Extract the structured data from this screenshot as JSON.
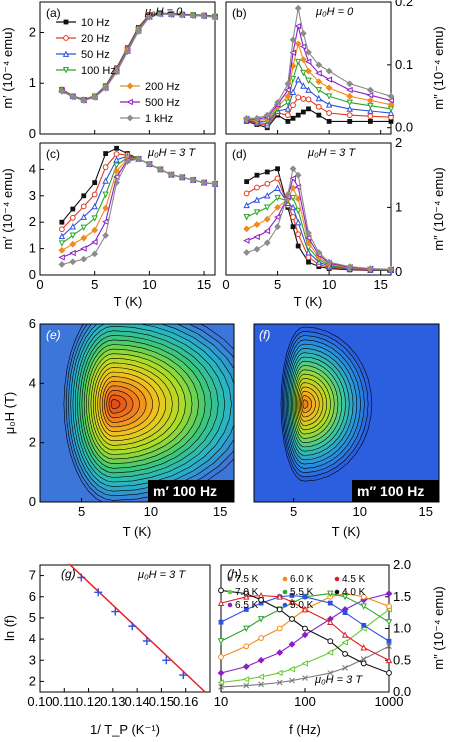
{
  "chart_data": [
    {
      "id": "a",
      "type": "line",
      "panel_label": "(a)",
      "condition": "μ₀H = 0",
      "ylabel": "m′ (10⁻⁴ emu)",
      "xlabel": "",
      "xlim": [
        0,
        16
      ],
      "ylim": [
        0,
        2.6
      ],
      "xticks": [
        0,
        5,
        10,
        15
      ],
      "yticks": [
        0,
        1,
        2
      ],
      "legend": [
        "10 Hz",
        "20 Hz",
        "50 Hz",
        "100 Hz",
        "200 Hz",
        "500 Hz",
        "1 kHz"
      ],
      "series": [
        {
          "name": "10 Hz",
          "x": [
            2,
            3,
            4,
            5,
            6,
            7,
            8,
            9,
            10,
            11,
            12,
            13,
            14,
            15,
            16
          ],
          "y": [
            0.88,
            0.75,
            0.68,
            0.75,
            0.95,
            1.3,
            1.7,
            2.1,
            2.35,
            2.38,
            2.37,
            2.36,
            2.35,
            2.34,
            2.32
          ]
        },
        {
          "name": "1 kHz",
          "x": [
            2,
            3,
            4,
            5,
            6,
            7,
            8,
            9,
            10,
            11,
            12,
            13,
            14,
            15,
            16
          ],
          "y": [
            0.84,
            0.73,
            0.66,
            0.72,
            0.9,
            1.22,
            1.62,
            2.02,
            2.3,
            2.36,
            2.35,
            2.34,
            2.33,
            2.32,
            2.3
          ]
        }
      ]
    },
    {
      "id": "b",
      "type": "line",
      "panel_label": "(b)",
      "condition": "μ₀H = 0",
      "ylabel": "m″ (10⁻⁴ emu)",
      "xlabel": "",
      "xlim": [
        0,
        16
      ],
      "ylim": [
        -0.01,
        0.2
      ],
      "xticks": [
        0,
        5,
        10,
        15
      ],
      "yticks": [
        0.0,
        0.1,
        0.2
      ],
      "series": [
        {
          "name": "10 Hz",
          "x": [
            2,
            3,
            4,
            5,
            6,
            7,
            8,
            9,
            10,
            12,
            14,
            16
          ],
          "y": [
            0.01,
            0.005,
            0.0,
            0.02,
            0.01,
            0.02,
            0.03,
            0.02,
            0.01,
            0.01,
            0.01,
            0.01
          ]
        },
        {
          "name": "1 kHz",
          "x": [
            2,
            3,
            4,
            5,
            6,
            6.5,
            7,
            7.5,
            8,
            9,
            10,
            12,
            14,
            16
          ],
          "y": [
            0.015,
            0.015,
            0.02,
            0.04,
            0.07,
            0.14,
            0.19,
            0.15,
            0.12,
            0.1,
            0.09,
            0.07,
            0.06,
            0.05
          ]
        }
      ]
    },
    {
      "id": "c",
      "type": "line",
      "panel_label": "(c)",
      "condition": "μ₀H = 3 T",
      "ylabel": "m′ (10⁻⁴ emu)",
      "xlabel": "T (K)",
      "xlim": [
        0,
        16
      ],
      "ylim": [
        0,
        5
      ],
      "xticks": [
        0,
        5,
        10,
        15
      ],
      "yticks": [
        0,
        1,
        2,
        3,
        4
      ],
      "series": [
        {
          "name": "10 Hz",
          "x": [
            2,
            3,
            4,
            5,
            6,
            7,
            8,
            9,
            10,
            11,
            12,
            13,
            14,
            15,
            16
          ],
          "y": [
            2.0,
            2.5,
            3.0,
            3.5,
            4.6,
            4.8,
            4.6,
            4.4,
            4.2,
            4.0,
            3.8,
            3.7,
            3.6,
            3.5,
            3.45
          ]
        },
        {
          "name": "1 kHz",
          "x": [
            2,
            3,
            4,
            5,
            6,
            7,
            8,
            9,
            10,
            11,
            12,
            13,
            14,
            15,
            16
          ],
          "y": [
            0.4,
            0.5,
            0.6,
            0.8,
            1.5,
            3.5,
            4.3,
            4.4,
            4.2,
            4.0,
            3.8,
            3.7,
            3.6,
            3.5,
            3.45
          ]
        }
      ]
    },
    {
      "id": "d",
      "type": "line",
      "panel_label": "(d)",
      "condition": "μ₀H = 3 T",
      "ylabel": "m″ (10⁻⁴ emu)",
      "xlabel": "T (K)",
      "xlim": [
        0,
        16
      ],
      "ylim": [
        -0.05,
        2.0
      ],
      "xticks": [
        0,
        5,
        10,
        15
      ],
      "yticks": [
        0,
        1,
        2
      ],
      "series": [
        {
          "name": "10 Hz",
          "x": [
            2,
            3,
            4,
            5,
            6,
            7,
            8,
            9,
            10,
            12,
            14,
            16
          ],
          "y": [
            1.4,
            1.5,
            1.55,
            1.6,
            1.0,
            0.4,
            0.15,
            0.08,
            0.05,
            0.03,
            0.02,
            0.02
          ]
        },
        {
          "name": "1 kHz",
          "x": [
            2,
            3,
            4,
            5,
            6,
            6.5,
            7,
            8,
            9,
            10,
            12,
            14,
            16
          ],
          "y": [
            0.3,
            0.35,
            0.45,
            0.7,
            1.2,
            1.6,
            1.5,
            0.6,
            0.3,
            0.15,
            0.08,
            0.05,
            0.04
          ]
        }
      ]
    },
    {
      "id": "e",
      "type": "heatmap",
      "panel_label": "(e)",
      "caption": "m′ 100 Hz",
      "xlabel": "T (K)",
      "ylabel": "μ₀H (T)",
      "xlim": [
        2,
        16
      ],
      "ylim": [
        0,
        6
      ],
      "xticks": [
        5,
        10,
        15
      ],
      "yticks": [
        0,
        2,
        4,
        6
      ],
      "peak": {
        "x": 7.3,
        "y": 3.3
      }
    },
    {
      "id": "f",
      "type": "heatmap",
      "panel_label": "(f)",
      "caption": "m″ 100 Hz",
      "xlabel": "T (K)",
      "ylabel": "",
      "xlim": [
        2,
        16
      ],
      "ylim": [
        0,
        6
      ],
      "xticks": [
        5,
        10,
        15
      ],
      "yticks": [],
      "peak": {
        "x": 5.8,
        "y": 3.3
      }
    },
    {
      "id": "g",
      "type": "scatter",
      "panel_label": "(g)",
      "condition": "μ₀H = 3 T",
      "xlabel": "1/ T_P (K⁻¹)",
      "ylabel": "ln (f)",
      "xlim": [
        0.1,
        0.17
      ],
      "ylim": [
        1.5,
        7.5
      ],
      "xticks": [
        0.1,
        0.11,
        0.12,
        0.13,
        0.14,
        0.15,
        0.16
      ],
      "yticks": [
        2,
        3,
        4,
        5,
        6,
        7
      ],
      "x": [
        0.117,
        0.124,
        0.131,
        0.138,
        0.144,
        0.152,
        0.159
      ],
      "y": [
        6.91,
        6.21,
        5.3,
        4.61,
        3.91,
        3.0,
        2.3
      ],
      "fit": {
        "x": [
          0.112,
          0.168
        ],
        "y": [
          7.55,
          1.5
        ]
      }
    },
    {
      "id": "h",
      "type": "line",
      "panel_label": "(h)",
      "condition": "μ₀H = 3 T",
      "xlabel": "f (Hz)",
      "ylabel": "m″ (10⁻⁴ emu)",
      "xscale": "log",
      "xlim": [
        10,
        1000
      ],
      "ylim": [
        0,
        2.0
      ],
      "xticks": [
        10,
        100,
        1000
      ],
      "yticks": [
        0.0,
        0.5,
        1.0,
        1.5,
        2.0
      ],
      "legend": [
        "7.5 K",
        "6.0 K",
        "4.5 K",
        "7.0 K",
        "5.5 K",
        "4.0 K",
        "6.5 K",
        "5.0 K"
      ],
      "x": [
        10,
        20,
        30,
        50,
        70,
        100,
        200,
        300,
        500,
        1000
      ],
      "series": [
        {
          "name": "7.5 K",
          "y": [
            0.08,
            0.1,
            0.12,
            0.15,
            0.18,
            0.22,
            0.3,
            0.38,
            0.52,
            0.72
          ]
        },
        {
          "name": "7.0 K",
          "y": [
            0.15,
            0.2,
            0.24,
            0.3,
            0.36,
            0.45,
            0.62,
            0.78,
            1.0,
            1.3
          ]
        },
        {
          "name": "6.5 K",
          "y": [
            0.3,
            0.4,
            0.5,
            0.62,
            0.75,
            0.9,
            1.15,
            1.3,
            1.45,
            1.55
          ]
        },
        {
          "name": "6.0 K",
          "y": [
            0.55,
            0.72,
            0.85,
            1.0,
            1.15,
            1.3,
            1.5,
            1.55,
            1.5,
            1.35
          ]
        },
        {
          "name": "5.5 K",
          "y": [
            0.8,
            1.0,
            1.15,
            1.3,
            1.4,
            1.5,
            1.55,
            1.5,
            1.35,
            1.1
          ]
        },
        {
          "name": "5.0 K",
          "y": [
            1.1,
            1.3,
            1.4,
            1.5,
            1.52,
            1.5,
            1.4,
            1.25,
            1.05,
            0.8
          ]
        },
        {
          "name": "4.5 K",
          "y": [
            1.4,
            1.5,
            1.52,
            1.5,
            1.42,
            1.3,
            1.1,
            0.9,
            0.7,
            0.5
          ]
        },
        {
          "name": "4.0 K",
          "y": [
            1.6,
            1.55,
            1.45,
            1.3,
            1.15,
            1.0,
            0.8,
            0.6,
            0.45,
            0.3
          ]
        }
      ]
    }
  ],
  "colors": {
    "10 Hz": "#111111",
    "20 Hz": "#e23b1f",
    "50 Hz": "#3050e0",
    "100 Hz": "#2aa62a",
    "200 Hz": "#f28a1c",
    "500 Hz": "#8a1fc9",
    "1 kHz": "#8c8c8c",
    "7.5 K": "#777777",
    "7.0 K": "#66cc33",
    "6.5 K": "#8a1fc9",
    "6.0 K": "#f28a1c",
    "5.5 K": "#2aa62a",
    "5.0 K": "#3050e0",
    "4.5 K": "#e02020",
    "4.0 K": "#111111",
    "fit": "#e82020",
    "marker_g": "#3050e0"
  }
}
